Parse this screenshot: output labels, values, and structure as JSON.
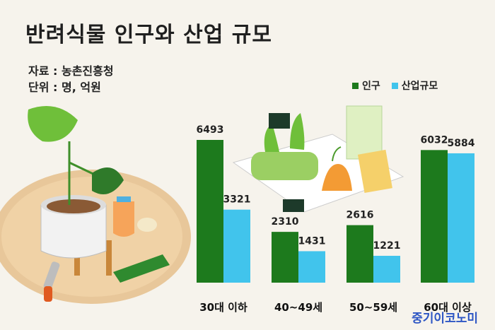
{
  "title": "반려식물 인구와 산업 규모",
  "source": "자료 : 농촌진흥청",
  "unit": "단위 : 명, 억원",
  "brand": "중기이코노미",
  "colors": {
    "population": "#1d7a1d",
    "industry": "#41c4ec"
  },
  "chart_data": {
    "type": "bar",
    "title": "반려식물 인구와 산업 규모",
    "categories": [
      "30대 이하",
      "40~49세",
      "50~59세",
      "60대 이상"
    ],
    "series": [
      {
        "name": "인구",
        "values": [
          6493,
          2310,
          2616,
          6032
        ]
      },
      {
        "name": "산업규모",
        "values": [
          3321,
          1431,
          1221,
          5884
        ]
      }
    ],
    "ylim": [
      0,
      6493
    ],
    "legend": "top-right",
    "grid": false
  }
}
